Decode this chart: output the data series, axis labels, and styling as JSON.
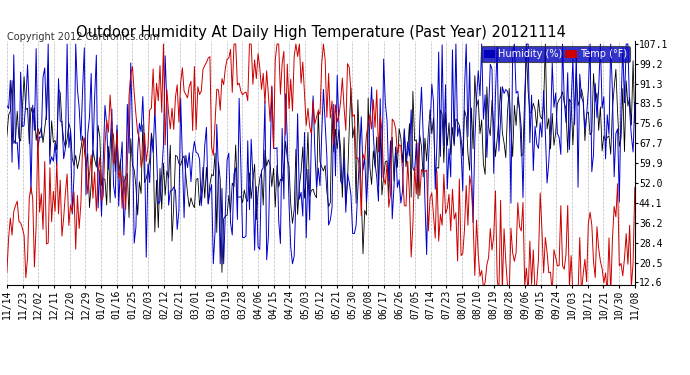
{
  "title": "Outdoor Humidity At Daily High Temperature (Past Year) 20121114",
  "copyright": "Copyright 2012 Cartronics.com",
  "legend_humidity": "Humidity (%)",
  "legend_temp": "Temp (°F)",
  "legend_humidity_bg": "#0000bb",
  "legend_temp_bg": "#cc0000",
  "ylabel_right": [
    "107.1",
    "99.2",
    "91.3",
    "83.5",
    "75.6",
    "67.7",
    "59.9",
    "52.0",
    "44.1",
    "36.2",
    "28.4",
    "20.5",
    "12.6"
  ],
  "yticks_vals": [
    107.1,
    99.2,
    91.3,
    83.5,
    75.6,
    67.7,
    59.9,
    52.0,
    44.1,
    36.2,
    28.4,
    20.5,
    12.6
  ],
  "xtick_labels": [
    "11/14",
    "11/23",
    "12/02",
    "12/11",
    "12/20",
    "12/29",
    "01/07",
    "01/16",
    "01/25",
    "02/03",
    "02/12",
    "02/21",
    "03/01",
    "03/10",
    "03/19",
    "03/28",
    "04/06",
    "04/15",
    "04/24",
    "05/03",
    "05/12",
    "05/21",
    "05/30",
    "06/08",
    "06/17",
    "06/26",
    "07/05",
    "07/14",
    "07/23",
    "08/01",
    "08/10",
    "08/19",
    "08/28",
    "09/06",
    "09/15",
    "09/24",
    "10/03",
    "10/12",
    "10/21",
    "10/30",
    "11/08"
  ],
  "background_color": "#ffffff",
  "plot_bg": "#ffffff",
  "grid_color": "#bbbbbb",
  "line_humidity_color": "#0000cc",
  "line_temp_color": "#cc0000",
  "line_black_color": "#000000",
  "title_fontsize": 10.5,
  "tick_fontsize": 7,
  "copyright_fontsize": 7,
  "ymin": 12.6,
  "ymax": 107.1
}
